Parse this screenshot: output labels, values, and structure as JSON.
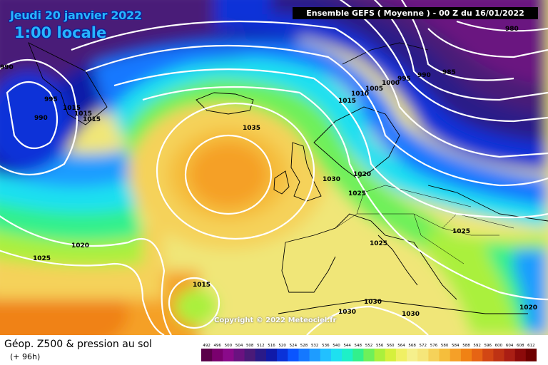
{
  "header": {
    "date": "Jeudi 20 janvier 2022",
    "time": "1:00 locale",
    "ensemble": "Ensemble GEFS  ( Moyenne )  -  00 Z du 16/01/2022"
  },
  "footer": {
    "title": "Géop. Z500 & pression au sol",
    "lead": "(+ 96h)",
    "scale_ticks": [
      "492",
      "496",
      "500",
      "504",
      "508",
      "512",
      "516",
      "520",
      "524",
      "528",
      "532",
      "536",
      "540",
      "544",
      "548",
      "552",
      "556",
      "560",
      "564",
      "568",
      "572",
      "576",
      "580",
      "584",
      "588",
      "592",
      "596",
      "600",
      "604",
      "608",
      "612"
    ]
  },
  "copyright": "Copyright © 2022 Meteociel.fr",
  "isobar_labels": [
    "990",
    "995",
    "1015",
    "1015",
    "1015",
    "990",
    "980",
    "985",
    "990",
    "995",
    "1000",
    "1005",
    "1010",
    "1015",
    "1035",
    "1030",
    "1020",
    "1025",
    "1025",
    "1020",
    "1025",
    "1015",
    "1025",
    "1030",
    "1030",
    "1030",
    "1020"
  ],
  "colors": {
    "scale": [
      "#5a004a",
      "#7a006e",
      "#8a0a8a",
      "#6a1280",
      "#4a1a78",
      "#2a1a88",
      "#101aa8",
      "#0a32d8",
      "#0a55ff",
      "#1478ff",
      "#1e9cff",
      "#22c0ff",
      "#1ee0f0",
      "#1ef0c8",
      "#32f08c",
      "#6ef05a",
      "#aaf03c",
      "#d6f03c",
      "#f0f064",
      "#f5f08c",
      "#f5e67a",
      "#f5d25a",
      "#f5be3c",
      "#f5a028",
      "#f08214",
      "#e66414",
      "#d24614",
      "#be3214",
      "#aa1e14",
      "#8c0a0a",
      "#6e0000"
    ],
    "isobar": "#ffffff",
    "coast": "#000000"
  }
}
